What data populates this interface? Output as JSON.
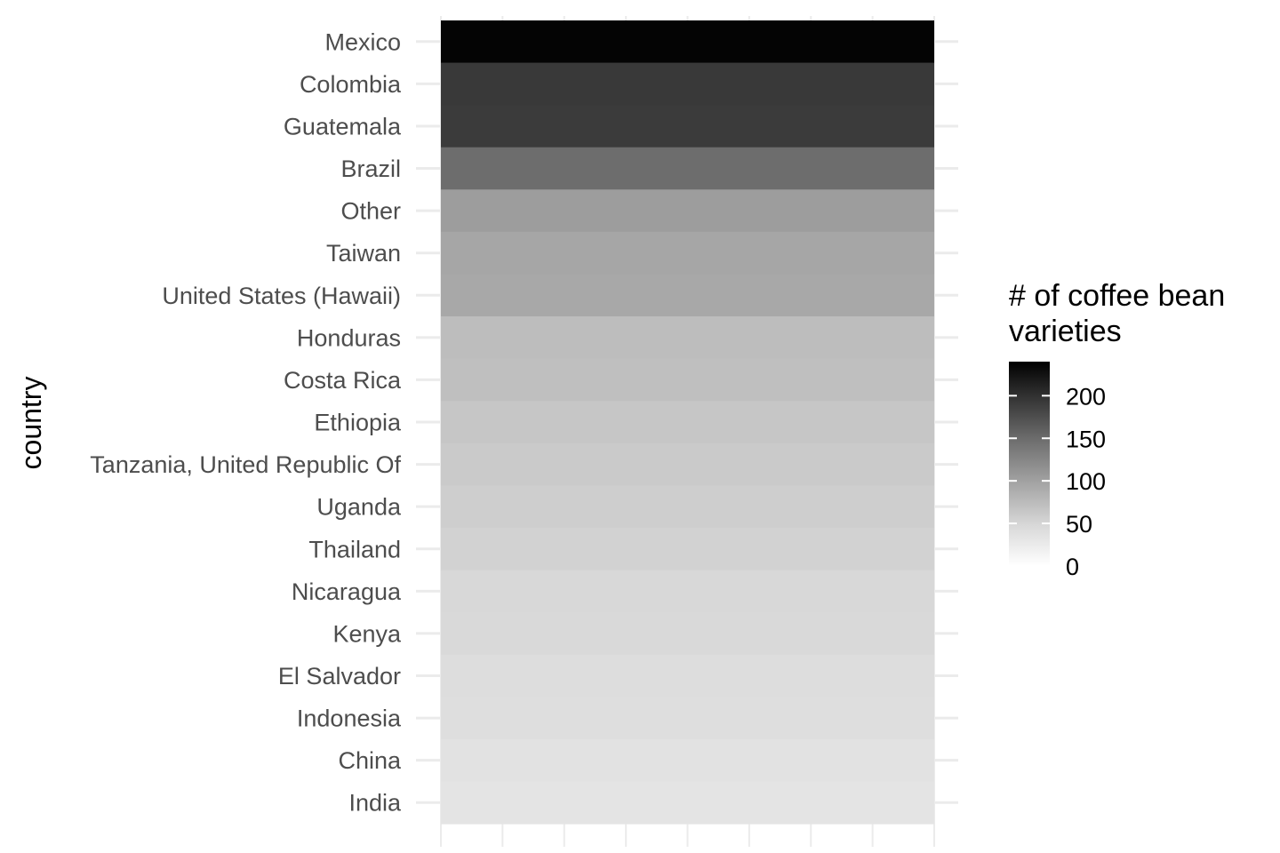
{
  "chart_data": {
    "type": "heatmap",
    "ylabel": "country",
    "categories": [
      "Mexico",
      "Colombia",
      "Guatemala",
      "Brazil",
      "Other",
      "Taiwan",
      "United States (Hawaii)",
      "Honduras",
      "Costa Rica",
      "Ethiopia",
      "Tanzania, United Republic Of",
      "Uganda",
      "Thailand",
      "Nicaragua",
      "Kenya",
      "El Salvador",
      "Indonesia",
      "China",
      "India"
    ],
    "values": [
      236,
      183,
      181,
      132,
      84,
      75,
      73,
      53,
      51,
      44,
      40,
      36,
      32,
      26,
      25,
      21,
      20,
      16,
      14
    ],
    "legend": {
      "title_line1": "# of coffee bean",
      "title_line2": "varieties",
      "ticks": [
        0,
        50,
        100,
        150,
        200
      ],
      "range": [
        0,
        240
      ],
      "placement": "right",
      "low_color": "#f2f2f2",
      "high_color": "#000000"
    },
    "grid": true
  }
}
